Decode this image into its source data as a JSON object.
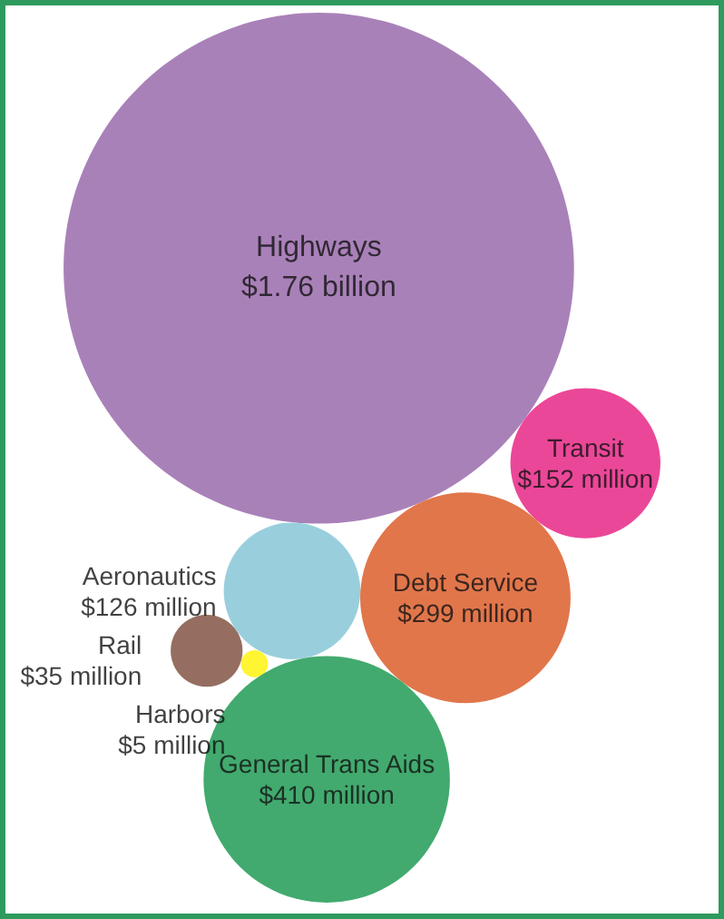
{
  "chart_data": {
    "type": "other",
    "categories": [
      "Highways",
      "Transit",
      "Aeronautics",
      "Debt Service",
      "Rail",
      "Harbors",
      "General Trans Aids"
    ],
    "values": [
      1760000000,
      152000000,
      126000000,
      299000000,
      35000000,
      5000000,
      410000000
    ],
    "value_labels": [
      "$1.76 billion",
      "$152 million",
      "$126 million",
      "$299 million",
      "$35 million",
      "$5 million",
      "$410 million"
    ],
    "colors": [
      "#9461a8",
      "#e6197e",
      "#7fc3d4",
      "#d9541e",
      "#7a4a3a",
      "#fff200",
      "#13954a"
    ]
  }
}
